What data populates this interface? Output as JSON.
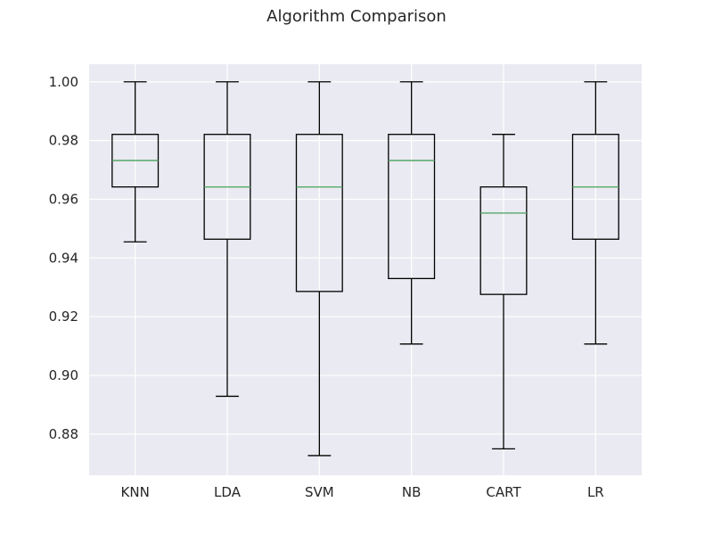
{
  "chart_data": {
    "type": "boxplot",
    "title": "Algorithm Comparison",
    "xlabel": "",
    "ylabel": "",
    "ylim": [
      0.866,
      1.006
    ],
    "yticks": [
      0.88,
      0.9,
      0.92,
      0.94,
      0.96,
      0.98,
      1.0
    ],
    "ytick_labels": [
      "0.88",
      "0.90",
      "0.92",
      "0.94",
      "0.96",
      "0.98",
      "1.00"
    ],
    "grid": true,
    "categories": [
      "KNN",
      "LDA",
      "SVM",
      "NB",
      "CART",
      "LR"
    ],
    "boxes": [
      {
        "label": "KNN",
        "whisker_low": 0.9455,
        "q1": 0.9642,
        "median": 0.9732,
        "q3": 0.9821,
        "whisker_high": 1.0
      },
      {
        "label": "LDA",
        "whisker_low": 0.8929,
        "q1": 0.9464,
        "median": 0.9642,
        "q3": 0.9821,
        "whisker_high": 1.0
      },
      {
        "label": "SVM",
        "whisker_low": 0.8727,
        "q1": 0.9286,
        "median": 0.9642,
        "q3": 0.9821,
        "whisker_high": 1.0
      },
      {
        "label": "NB",
        "whisker_low": 0.9107,
        "q1": 0.933,
        "median": 0.9732,
        "q3": 0.9821,
        "whisker_high": 1.0
      },
      {
        "label": "CART",
        "whisker_low": 0.875,
        "q1": 0.9276,
        "median": 0.9553,
        "q3": 0.9642,
        "whisker_high": 0.9821
      },
      {
        "label": "LR",
        "whisker_low": 0.9107,
        "q1": 0.9464,
        "median": 0.9642,
        "q3": 0.9821,
        "whisker_high": 1.0
      }
    ],
    "colors": {
      "plot_background": "#EAEAF2",
      "grid": "#FFFFFF",
      "box": "#000000",
      "median": "#55A868"
    }
  }
}
